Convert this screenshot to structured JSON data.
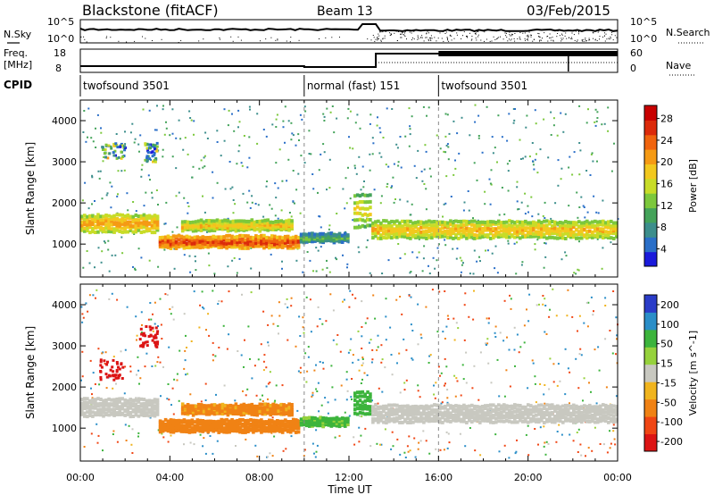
{
  "header": {
    "station": "Blackstone (fitACF)",
    "beam": "Beam 13",
    "date": "03/Feb/2015"
  },
  "summary": {
    "nsky_label": "N.Sky",
    "nsearch_label": "N.Search",
    "freq_label": "Freq.",
    "freq_unit": "[MHz]",
    "nave_label": "Nave",
    "cpid_label": "CPID",
    "top_scale_left": [
      "10^5",
      "10^0"
    ],
    "top_scale_right": [
      "10^5",
      "10^0"
    ],
    "freq_ticks": [
      "18",
      "8"
    ],
    "nave_ticks": [
      "60",
      "0"
    ]
  },
  "cpid_segments": [
    {
      "label": "twofsound 3501",
      "start_hour": 0,
      "end_hour": 10
    },
    {
      "label": "normal (fast) 151",
      "start_hour": 10,
      "end_hour": 16
    },
    {
      "label": "twofsound 3501",
      "start_hour": 16,
      "end_hour": 24
    }
  ],
  "colors": {
    "power_scale": [
      "#1a1adb",
      "#2a6fc8",
      "#3c8e8c",
      "#44a35a",
      "#7cc83c",
      "#c8dc28",
      "#f2c81e",
      "#f59a14",
      "#f0640e",
      "#dc2a0a",
      "#c80000"
    ],
    "velocity_scale": [
      "#2a3cc8",
      "#2a8ec8",
      "#3cb43c",
      "#96d23c",
      "#c8c8c0",
      "#f0b41e",
      "#f08214",
      "#f04614",
      "#dc1414"
    ]
  },
  "chart_data": [
    {
      "type": "heatmap",
      "title": "Power",
      "xlabel": "Time UT",
      "ylabel": "Slant Range [km]",
      "x_ticks": [
        "00:00",
        "04:00",
        "08:00",
        "12:00",
        "16:00",
        "20:00",
        "00:00"
      ],
      "y_ticks": [
        "1000",
        "2000",
        "3000",
        "4000"
      ],
      "xlim_hours": [
        0,
        24
      ],
      "ylim_km": [
        200,
        4500
      ],
      "colorbar": {
        "label": "Power [dB]",
        "range": [
          0,
          30
        ],
        "ticks": [
          "28",
          "24",
          "20",
          "16",
          "12",
          "8",
          "4"
        ]
      },
      "bands": [
        {
          "hours": [
            0,
            3.5
          ],
          "center_km": 1500,
          "width_km": 450,
          "value_db": 22
        },
        {
          "hours": [
            3.5,
            9.8
          ],
          "center_km": 1050,
          "width_km": 300,
          "value_db": 27
        },
        {
          "hours": [
            4.5,
            9.5
          ],
          "center_km": 1450,
          "width_km": 250,
          "value_db": 20
        },
        {
          "hours": [
            9.8,
            12.0
          ],
          "center_km": 1150,
          "width_km": 200,
          "value_db": 12
        },
        {
          "hours": [
            12.2,
            13.0
          ],
          "center_km": 1800,
          "width_km": 900,
          "value_db": 18
        },
        {
          "hours": [
            13.0,
            24
          ],
          "center_km": 1350,
          "width_km": 450,
          "value_db": 20
        }
      ],
      "patches": [
        {
          "hours": [
            0.8,
            2.0
          ],
          "km": [
            3100,
            3500
          ],
          "value_db": 10
        },
        {
          "hours": [
            2.8,
            3.4
          ],
          "km": [
            3000,
            3500
          ],
          "value_db": 8
        }
      ]
    },
    {
      "type": "heatmap",
      "title": "Velocity",
      "xlabel": "Time UT",
      "ylabel": "Slant Range [km]",
      "x_ticks": [
        "00:00",
        "04:00",
        "08:00",
        "12:00",
        "16:00",
        "20:00",
        "00:00"
      ],
      "y_ticks": [
        "1000",
        "2000",
        "3000",
        "4000"
      ],
      "xlim_hours": [
        0,
        24
      ],
      "ylim_km": [
        200,
        4500
      ],
      "colorbar": {
        "label": "Velocity [m s^-1]",
        "range": [
          -250,
          250
        ],
        "ticks": [
          "200",
          "100",
          "50",
          "15",
          "-15",
          "-50",
          "-100",
          "-200"
        ]
      },
      "bands": [
        {
          "hours": [
            0,
            3.5
          ],
          "center_km": 1500,
          "width_km": 450,
          "velocity": 0
        },
        {
          "hours": [
            3.5,
            9.8
          ],
          "center_km": 1050,
          "width_km": 300,
          "velocity": -60
        },
        {
          "hours": [
            4.5,
            9.5
          ],
          "center_km": 1450,
          "width_km": 250,
          "velocity": -40
        },
        {
          "hours": [
            9.8,
            12.0
          ],
          "center_km": 1150,
          "width_km": 200,
          "velocity": 40
        },
        {
          "hours": [
            12.2,
            13.0
          ],
          "center_km": 1600,
          "width_km": 600,
          "velocity": 60
        },
        {
          "hours": [
            13.0,
            24
          ],
          "center_km": 1350,
          "width_km": 450,
          "velocity": 0
        }
      ],
      "patches": [
        {
          "hours": [
            0.8,
            2.0
          ],
          "km": [
            2200,
            2700
          ],
          "velocity": -220
        },
        {
          "hours": [
            2.6,
            3.4
          ],
          "km": [
            3000,
            3500
          ],
          "velocity": -220
        }
      ]
    }
  ]
}
